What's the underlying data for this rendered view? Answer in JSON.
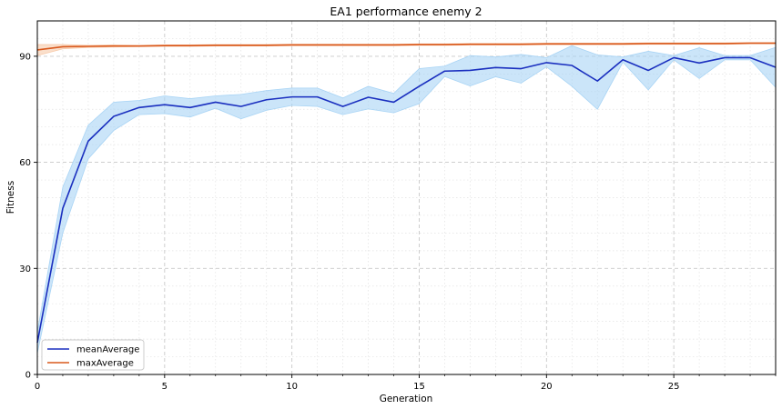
{
  "chart_data": {
    "type": "line",
    "title": "EA1 performance enemy 2",
    "xlabel": "Generation",
    "ylabel": "Fitness",
    "xlim": [
      0,
      29
    ],
    "ylim": [
      0,
      100
    ],
    "x_ticks": [
      0,
      5,
      10,
      15,
      20,
      25
    ],
    "y_ticks": [
      0,
      30,
      60,
      90
    ],
    "grid": "major and minor, dashed",
    "legend_position": "lower-left",
    "x": [
      0,
      1,
      2,
      3,
      4,
      5,
      6,
      7,
      8,
      9,
      10,
      11,
      12,
      13,
      14,
      15,
      16,
      17,
      18,
      19,
      20,
      21,
      22,
      23,
      24,
      25,
      26,
      27,
      28,
      29
    ],
    "series": [
      {
        "name": "meanAverage",
        "color": "#1a2fbf",
        "band_color": "#a8d4f5",
        "values": [
          9,
          47,
          66,
          73,
          75.5,
          76.3,
          75.5,
          77,
          75.8,
          77.7,
          78.5,
          78.5,
          75.8,
          78.4,
          77,
          81.5,
          85.8,
          86,
          86.8,
          86.5,
          88.2,
          87.4,
          83,
          89,
          86,
          89.6,
          88.1,
          89.6,
          89.6,
          86.9
        ],
        "band_lower": [
          6,
          40,
          61,
          69,
          73.5,
          73.8,
          72.8,
          75.3,
          72.3,
          74.7,
          76.1,
          75.8,
          73.5,
          75.1,
          74,
          76.6,
          84.3,
          81.6,
          84.2,
          82.4,
          87,
          81.5,
          75,
          88.3,
          80.5,
          89,
          83.7,
          89,
          89,
          81.2
        ],
        "band_upper": [
          12,
          53,
          70.5,
          77,
          77.5,
          78.8,
          78,
          78.8,
          79.2,
          80.3,
          81,
          81,
          78.2,
          81.5,
          79.5,
          86.5,
          87.2,
          90.2,
          89.8,
          90.5,
          89.6,
          93,
          90.4,
          89.8,
          91.4,
          90.2,
          92.4,
          90.2,
          90.2,
          92.5
        ]
      },
      {
        "name": "maxAverage",
        "color": "#d9581c",
        "band_color": "#f7c9a8",
        "values": [
          91.8,
          92.7,
          92.8,
          92.9,
          92.9,
          93,
          93,
          93.1,
          93.1,
          93.1,
          93.2,
          93.2,
          93.2,
          93.2,
          93.2,
          93.3,
          93.3,
          93.4,
          93.4,
          93.4,
          93.5,
          93.5,
          93.5,
          93.5,
          93.6,
          93.6,
          93.6,
          93.6,
          93.7,
          93.7
        ],
        "band_lower": [
          90.2,
          92.1,
          92.5,
          92.6,
          92.7,
          92.8,
          92.8,
          92.9,
          92.9,
          92.9,
          93,
          93,
          93,
          93,
          93,
          93.1,
          93.1,
          93.2,
          93.2,
          93.2,
          93.3,
          93.3,
          93.3,
          93.3,
          93.4,
          93.4,
          93.4,
          93.4,
          93.5,
          93.5
        ],
        "band_upper": [
          93.3,
          93.3,
          93.1,
          93.2,
          93.1,
          93.2,
          93.2,
          93.3,
          93.3,
          93.3,
          93.4,
          93.4,
          93.4,
          93.4,
          93.4,
          93.5,
          93.5,
          93.6,
          93.6,
          93.6,
          93.7,
          93.7,
          93.7,
          93.7,
          93.8,
          93.8,
          93.8,
          93.8,
          93.9,
          93.9
        ]
      }
    ]
  }
}
